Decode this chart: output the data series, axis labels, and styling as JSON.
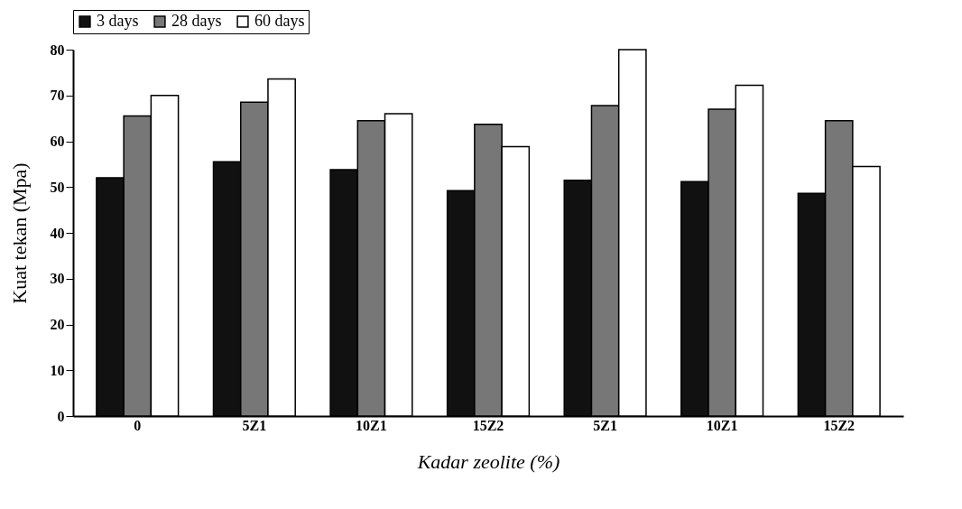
{
  "chart_data": {
    "type": "bar",
    "xlabel": "Kadar zeolite (%)",
    "ylabel": "Kuat tekan (Mpa)",
    "categories": [
      "0",
      "5Z1",
      "10Z1",
      "15Z2",
      "5Z1",
      "10Z1",
      "15Z2"
    ],
    "series": [
      {
        "name": "3 days",
        "color": "#111111",
        "values": [
          52,
          55.5,
          53.8,
          49.2,
          51.5,
          51.2,
          48.6
        ]
      },
      {
        "name": "28 days",
        "color": "#777777",
        "values": [
          65.5,
          68.5,
          64.5,
          63.7,
          67.8,
          67,
          64.5
        ]
      },
      {
        "name": "60 days",
        "color": "#ffffff",
        "values": [
          70,
          73.6,
          66,
          58.8,
          80,
          72.2,
          54.5
        ]
      }
    ],
    "ylim": [
      0,
      80
    ],
    "yticks": [
      0,
      10,
      20,
      30,
      40,
      50,
      60,
      70,
      80
    ],
    "grid": false,
    "legend": "top"
  }
}
